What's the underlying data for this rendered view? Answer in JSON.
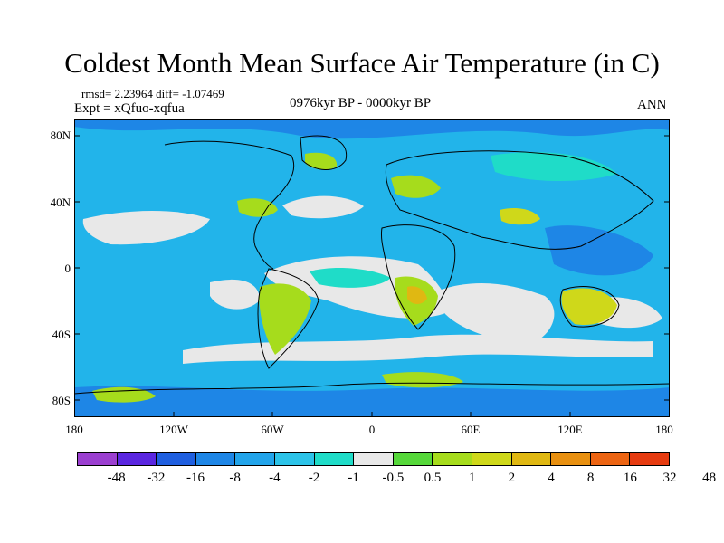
{
  "title": "Coldest Month Mean Surface Air Temperature (in C)",
  "stats": "rmsd= 2.23964  diff= -1.07469",
  "experiment": "Expt = xQfuo-xqfua",
  "period": "0976kyr BP - 0000kyr BP",
  "season": "ANN",
  "latitude_labels": [
    "80N",
    "40N",
    "0",
    "40S",
    "80S"
  ],
  "longitude_labels": [
    "180",
    "120W",
    "60W",
    "0",
    "60E",
    "120E",
    "180"
  ],
  "colorbar": {
    "labels": [
      "-48",
      "-32",
      "-16",
      "-8",
      "-4",
      "-2",
      "-1",
      "-0.5",
      "0.5",
      "1",
      "2",
      "4",
      "8",
      "16",
      "32",
      "48"
    ],
    "colors": [
      "#9b3fd0",
      "#5a26e0",
      "#1f5fe0",
      "#1e86e6",
      "#22a4ea",
      "#2cc3e8",
      "#1fdcc8",
      "#e8e8e8",
      "#56d83a",
      "#a6dc1c",
      "#cfd81a",
      "#e0b812",
      "#e89010",
      "#ec6412",
      "#e63b10"
    ]
  },
  "colors": {
    "ocean_base": "#22b4ea",
    "ocean_dark": "#1e86e6",
    "neutral": "#e8e8e8",
    "cool_teal": "#1fdcc8",
    "warm_light": "#a6dc1c",
    "warm": "#cfd81a",
    "hot": "#e0b812",
    "hotter": "#e89010"
  }
}
